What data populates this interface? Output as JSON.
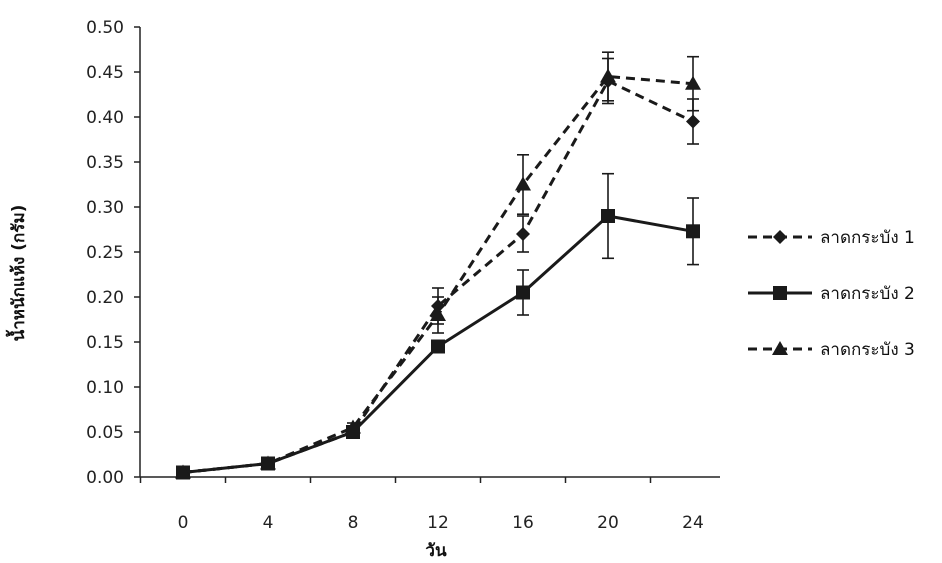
{
  "chart_data": {
    "type": "line",
    "xlabel": "วัน",
    "ylabel": "น้ำหนักแห้ง (กรัม)",
    "x": [
      0,
      4,
      8,
      12,
      16,
      20,
      24
    ],
    "xlim": [
      0,
      24
    ],
    "ylim": [
      0,
      0.5
    ],
    "yticks": [
      "0.00",
      "0.05",
      "0.10",
      "0.15",
      "0.20",
      "0.25",
      "0.30",
      "0.35",
      "0.40",
      "0.45",
      "0.50"
    ],
    "xticks": [
      "0",
      "4",
      "8",
      "12",
      "16",
      "20",
      "24"
    ],
    "grid": false,
    "legend_position": "right",
    "series": [
      {
        "name": "ลาดกระบัง 1",
        "line_style": "dashed",
        "marker": "diamond",
        "values": [
          0.005,
          0.015,
          0.05,
          0.19,
          0.27,
          0.44,
          0.395
        ],
        "errors": [
          0,
          0,
          0.005,
          0.02,
          0.02,
          0.025,
          0.025
        ]
      },
      {
        "name": "ลาดกระบัง 2",
        "line_style": "solid",
        "marker": "square",
        "values": [
          0.005,
          0.015,
          0.05,
          0.145,
          0.205,
          0.29,
          0.273
        ],
        "errors": [
          0,
          0,
          0.005,
          0,
          0.025,
          0.047,
          0.037
        ]
      },
      {
        "name": "ลาดกระบัง 3",
        "line_style": "dashed",
        "marker": "triangle",
        "values": [
          0.005,
          0.015,
          0.055,
          0.18,
          0.325,
          0.445,
          0.437
        ],
        "errors": [
          0,
          0,
          0.005,
          0.02,
          0.033,
          0.027,
          0.03
        ]
      }
    ],
    "colors": {
      "line": "#1a1a1a",
      "axis": "#222222"
    }
  }
}
